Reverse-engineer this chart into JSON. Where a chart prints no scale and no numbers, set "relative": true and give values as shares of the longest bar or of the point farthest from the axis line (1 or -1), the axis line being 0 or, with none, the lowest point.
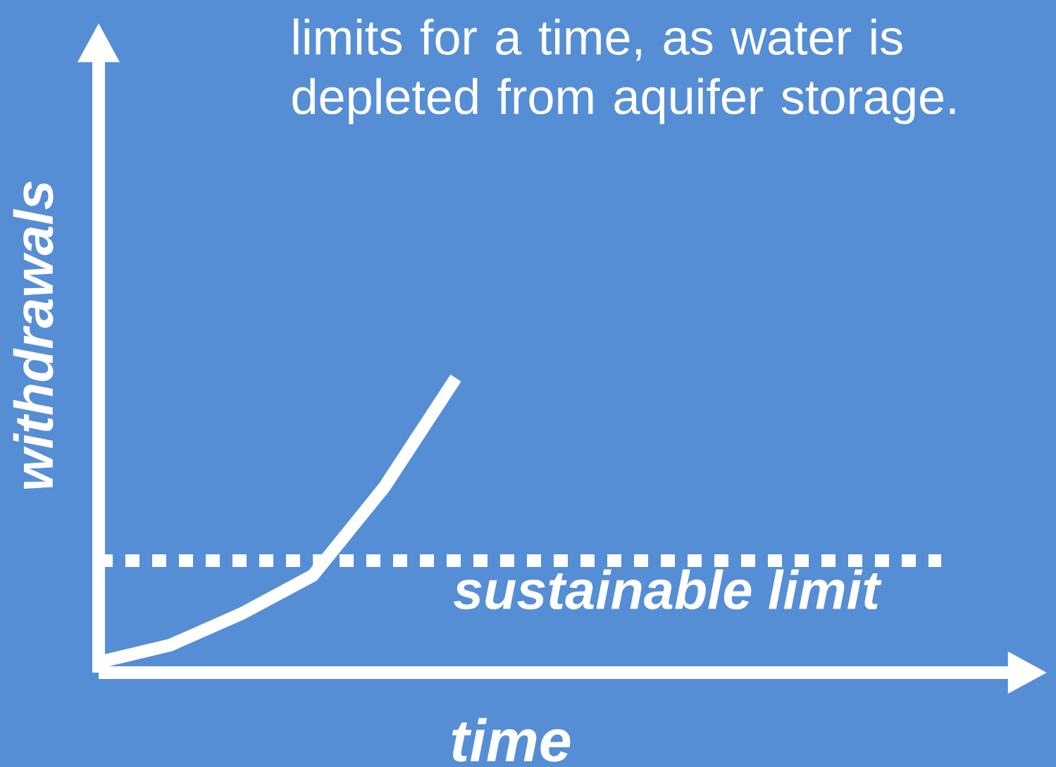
{
  "chart_data": {
    "type": "line",
    "relative": true,
    "tick_labels": false,
    "xlabel": "time",
    "ylabel": "withdrawals",
    "annotations": [
      "limits for a time, as water is depleted from aquifer storage."
    ],
    "categories": [
      null,
      null,
      null,
      null,
      null,
      null
    ],
    "series": [
      {
        "color": "#ffffff",
        "line_style": "solid",
        "values": [
          0.035,
          0.093,
          0.2,
          0.33,
          0.63,
          1.0
        ]
      }
    ],
    "ref_lines": [
      {
        "axis": "y",
        "value": 0.38,
        "label": "sustainable limit",
        "color": "#ffffff",
        "line_style": "dotted"
      }
    ]
  }
}
